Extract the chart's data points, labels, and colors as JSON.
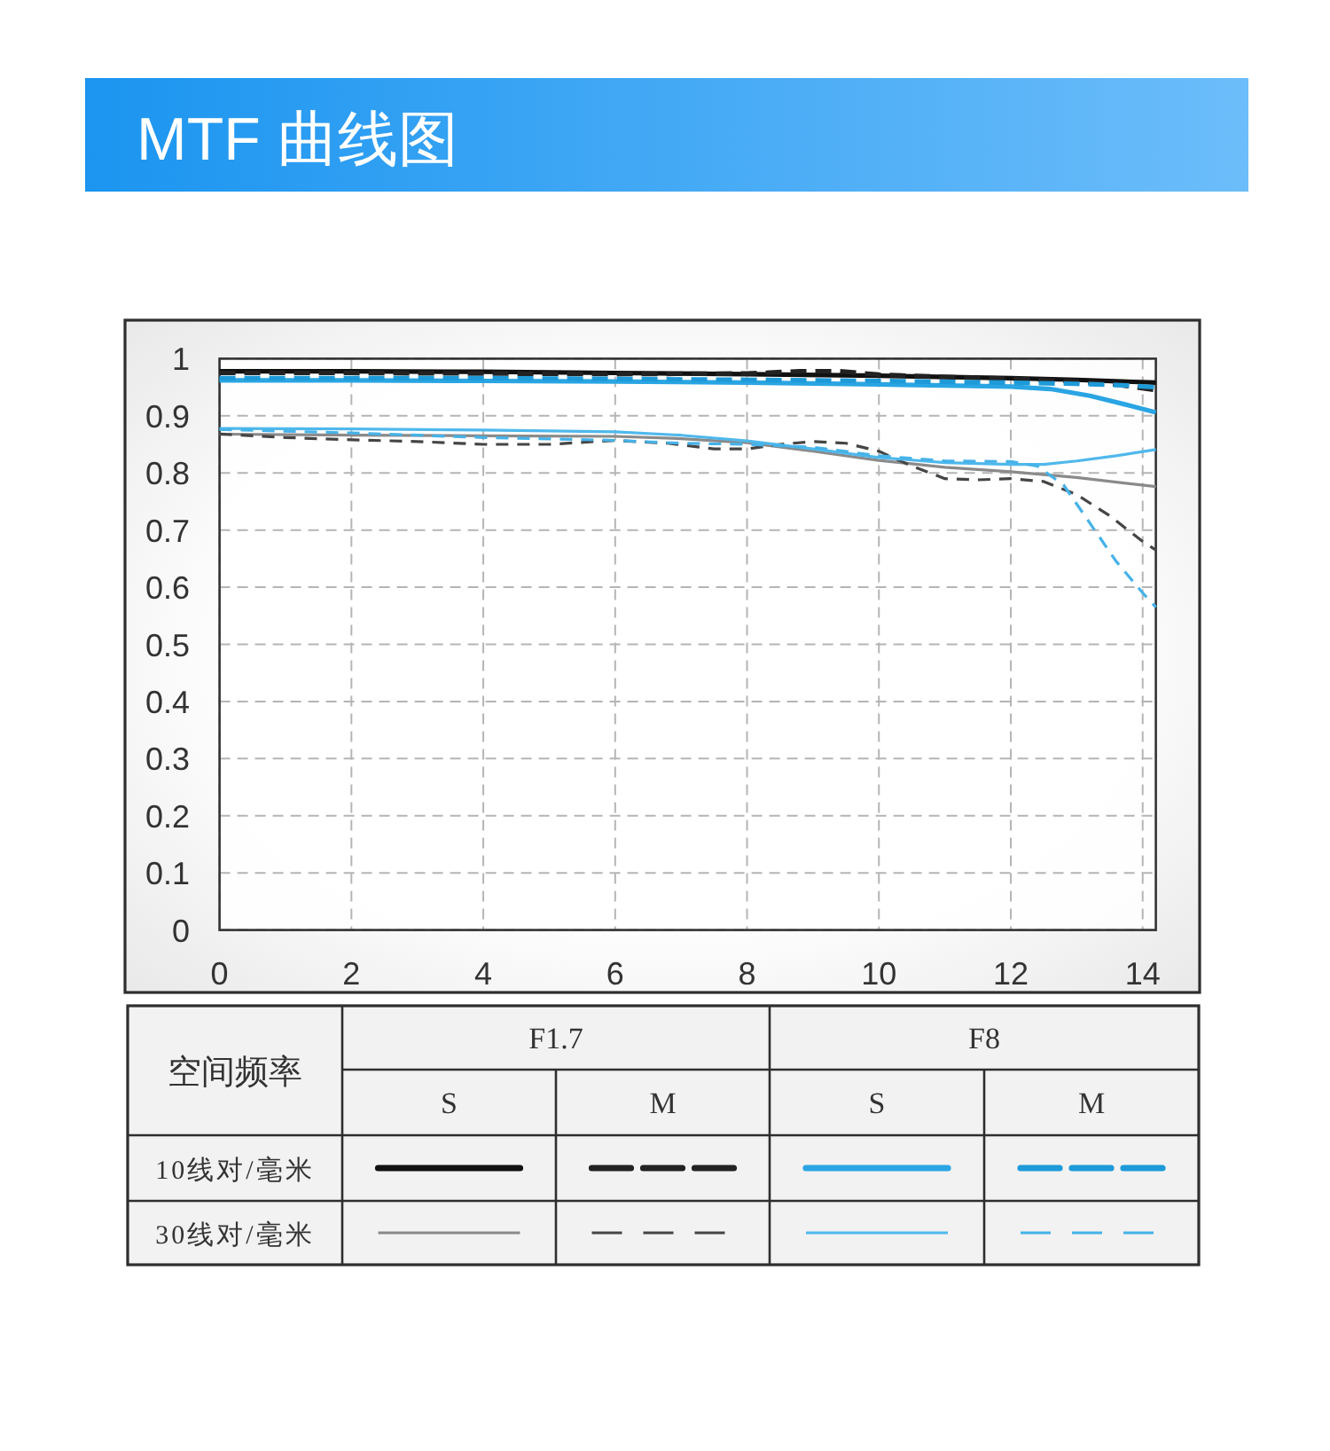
{
  "chart_data": {
    "type": "line",
    "title": "MTF 曲线图",
    "xlim": [
      0,
      14.2
    ],
    "xticks": [
      0,
      2,
      4,
      6,
      8,
      10,
      12,
      14
    ],
    "ylim": [
      0,
      1
    ],
    "yticks": [
      0,
      0.1,
      0.2,
      0.3,
      0.4,
      0.5,
      0.6,
      0.7,
      0.8,
      0.9,
      1
    ],
    "grid": true,
    "series": [
      {
        "color": "#111111",
        "line_style": "solid",
        "x": [
          0,
          2,
          4,
          6,
          8,
          10,
          12,
          13,
          14.2
        ],
        "values": [
          0.978,
          0.978,
          0.977,
          0.975,
          0.973,
          0.97,
          0.966,
          0.963,
          0.958
        ]
      },
      {
        "color": "#222222",
        "line_style": "dashed",
        "x": [
          0,
          2,
          4,
          6,
          8,
          8.8,
          9.4,
          10,
          11,
          12,
          13,
          13.6,
          14.2
        ],
        "values": [
          0.975,
          0.975,
          0.974,
          0.973,
          0.974,
          0.978,
          0.978,
          0.972,
          0.968,
          0.965,
          0.96,
          0.955,
          0.945
        ]
      },
      {
        "color": "#2aa5e3",
        "line_style": "solid",
        "x": [
          0,
          2,
          4,
          6,
          8,
          10,
          11,
          12,
          12.6,
          13.2,
          13.8,
          14.2
        ],
        "values": [
          0.962,
          0.962,
          0.961,
          0.96,
          0.958,
          0.955,
          0.953,
          0.951,
          0.947,
          0.935,
          0.918,
          0.906
        ]
      },
      {
        "color": "#1e9ad8",
        "line_style": "dashed",
        "x": [
          0,
          4,
          8,
          10,
          12,
          13,
          13.8,
          14.2
        ],
        "values": [
          0.966,
          0.966,
          0.963,
          0.961,
          0.958,
          0.956,
          0.953,
          0.95
        ]
      },
      {
        "color": "#8a8a8a",
        "line_style": "solid",
        "x": [
          0,
          2,
          4,
          6,
          7,
          8,
          9,
          10,
          11,
          12,
          13,
          14.2
        ],
        "values": [
          0.868,
          0.866,
          0.865,
          0.864,
          0.86,
          0.853,
          0.838,
          0.822,
          0.81,
          0.802,
          0.792,
          0.776
        ]
      },
      {
        "color": "#454545",
        "line_style": "dashed",
        "x": [
          0,
          1,
          2,
          3,
          4,
          5,
          6,
          6.8,
          7.5,
          8,
          8.5,
          9,
          9.5,
          10,
          10.5,
          11,
          11.5,
          12,
          12.5,
          13,
          13.5,
          14,
          14.2
        ],
        "values": [
          0.868,
          0.862,
          0.858,
          0.855,
          0.85,
          0.85,
          0.857,
          0.852,
          0.842,
          0.842,
          0.85,
          0.855,
          0.852,
          0.838,
          0.812,
          0.79,
          0.788,
          0.79,
          0.785,
          0.762,
          0.725,
          0.68,
          0.665
        ]
      },
      {
        "color": "#4fb8ec",
        "line_style": "solid",
        "x": [
          0,
          2,
          4,
          6,
          7,
          8,
          9,
          10,
          11,
          12,
          12.5,
          13,
          13.6,
          14.2
        ],
        "values": [
          0.878,
          0.877,
          0.875,
          0.872,
          0.866,
          0.856,
          0.842,
          0.827,
          0.818,
          0.815,
          0.815,
          0.821,
          0.83,
          0.841
        ]
      },
      {
        "color": "#45b2e8",
        "line_style": "dashed",
        "x": [
          0,
          2,
          4,
          6,
          7,
          8,
          9,
          10,
          11,
          12,
          12.4,
          12.8,
          13.2,
          13.6,
          14,
          14.2
        ],
        "values": [
          0.876,
          0.87,
          0.862,
          0.857,
          0.852,
          0.85,
          0.845,
          0.83,
          0.821,
          0.82,
          0.812,
          0.779,
          0.712,
          0.645,
          0.59,
          0.565
        ]
      }
    ],
    "annotations": [
      "空间频率",
      "F1.7",
      "F8",
      "S",
      "M",
      "S",
      "M",
      "10线对/毫米",
      "30线对/毫米"
    ]
  }
}
